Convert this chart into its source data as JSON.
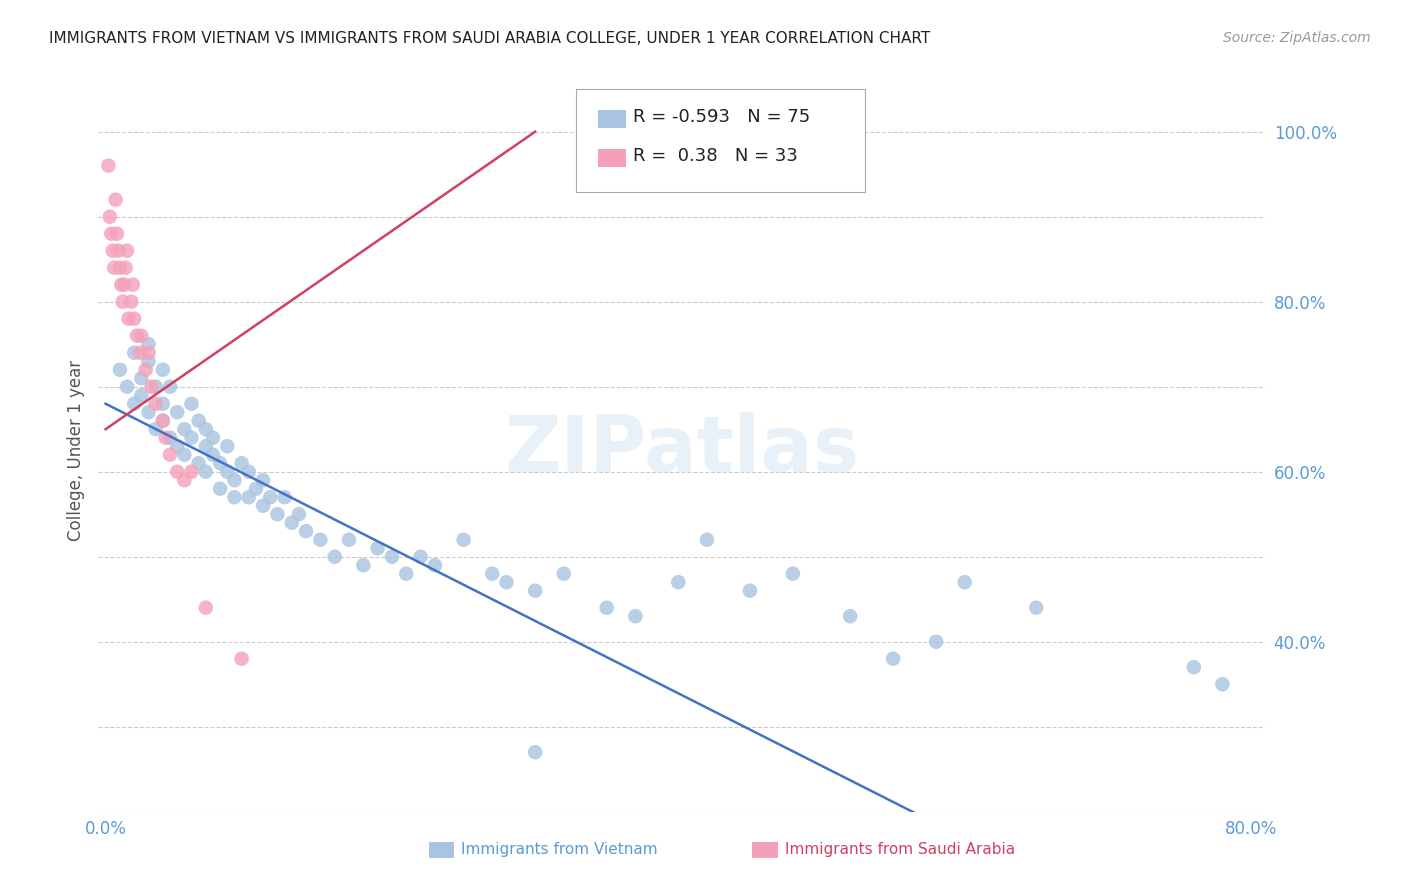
{
  "title": "IMMIGRANTS FROM VIETNAM VS IMMIGRANTS FROM SAUDI ARABIA COLLEGE, UNDER 1 YEAR CORRELATION CHART",
  "source": "Source: ZipAtlas.com",
  "ylabel": "College, Under 1 year",
  "legend_label1": "Immigrants from Vietnam",
  "legend_label2": "Immigrants from Saudi Arabia",
  "R1": -0.593,
  "N1": 75,
  "R2": 0.38,
  "N2": 33,
  "color1": "#a8c4e0",
  "color1_line": "#4472c4",
  "color2": "#f4a0b8",
  "color2_line": "#d04060",
  "xlim": [
    -0.005,
    0.81
  ],
  "ylim": [
    0.2,
    1.05
  ],
  "right_yticks": [
    0.4,
    0.6,
    0.8,
    1.0
  ],
  "right_ytick_labels": [
    "40.0%",
    "60.0%",
    "80.0%",
    "100.0%"
  ],
  "watermark": "ZIPatlas",
  "background_color": "#ffffff",
  "grid_color": "#cccccc",
  "title_color": "#222222",
  "axis_color": "#5b9bd5",
  "vietnam_x": [
    0.01,
    0.015,
    0.02,
    0.02,
    0.025,
    0.025,
    0.03,
    0.03,
    0.03,
    0.035,
    0.035,
    0.04,
    0.04,
    0.04,
    0.045,
    0.045,
    0.05,
    0.05,
    0.055,
    0.055,
    0.06,
    0.06,
    0.065,
    0.065,
    0.07,
    0.07,
    0.07,
    0.075,
    0.075,
    0.08,
    0.08,
    0.085,
    0.085,
    0.09,
    0.09,
    0.095,
    0.1,
    0.1,
    0.105,
    0.11,
    0.11,
    0.115,
    0.12,
    0.125,
    0.13,
    0.135,
    0.14,
    0.15,
    0.16,
    0.17,
    0.18,
    0.19,
    0.2,
    0.21,
    0.22,
    0.23,
    0.25,
    0.27,
    0.28,
    0.3,
    0.32,
    0.35,
    0.37,
    0.4,
    0.42,
    0.45,
    0.48,
    0.52,
    0.55,
    0.58,
    0.6,
    0.65,
    0.76,
    0.78,
    0.3
  ],
  "vietnam_y": [
    0.72,
    0.7,
    0.68,
    0.74,
    0.71,
    0.69,
    0.73,
    0.75,
    0.67,
    0.7,
    0.65,
    0.68,
    0.72,
    0.66,
    0.64,
    0.7,
    0.67,
    0.63,
    0.65,
    0.62,
    0.64,
    0.68,
    0.61,
    0.66,
    0.63,
    0.65,
    0.6,
    0.62,
    0.64,
    0.61,
    0.58,
    0.6,
    0.63,
    0.59,
    0.57,
    0.61,
    0.57,
    0.6,
    0.58,
    0.56,
    0.59,
    0.57,
    0.55,
    0.57,
    0.54,
    0.55,
    0.53,
    0.52,
    0.5,
    0.52,
    0.49,
    0.51,
    0.5,
    0.48,
    0.5,
    0.49,
    0.52,
    0.48,
    0.47,
    0.46,
    0.48,
    0.44,
    0.43,
    0.47,
    0.52,
    0.46,
    0.48,
    0.43,
    0.38,
    0.4,
    0.47,
    0.44,
    0.37,
    0.35,
    0.27
  ],
  "saudi_x": [
    0.002,
    0.003,
    0.004,
    0.005,
    0.006,
    0.007,
    0.008,
    0.009,
    0.01,
    0.011,
    0.012,
    0.013,
    0.014,
    0.015,
    0.016,
    0.018,
    0.019,
    0.02,
    0.022,
    0.024,
    0.025,
    0.028,
    0.03,
    0.032,
    0.035,
    0.04,
    0.042,
    0.045,
    0.05,
    0.055,
    0.06,
    0.07,
    0.095
  ],
  "saudi_y": [
    0.96,
    0.9,
    0.88,
    0.86,
    0.84,
    0.92,
    0.88,
    0.86,
    0.84,
    0.82,
    0.8,
    0.82,
    0.84,
    0.86,
    0.78,
    0.8,
    0.82,
    0.78,
    0.76,
    0.74,
    0.76,
    0.72,
    0.74,
    0.7,
    0.68,
    0.66,
    0.64,
    0.62,
    0.6,
    0.59,
    0.6,
    0.44,
    0.38
  ],
  "blue_line_x": [
    0.0,
    0.81
  ],
  "blue_line_y": [
    0.68,
    -0.01
  ],
  "pink_line_x": [
    0.0,
    0.3
  ],
  "pink_line_y": [
    0.65,
    1.0
  ]
}
